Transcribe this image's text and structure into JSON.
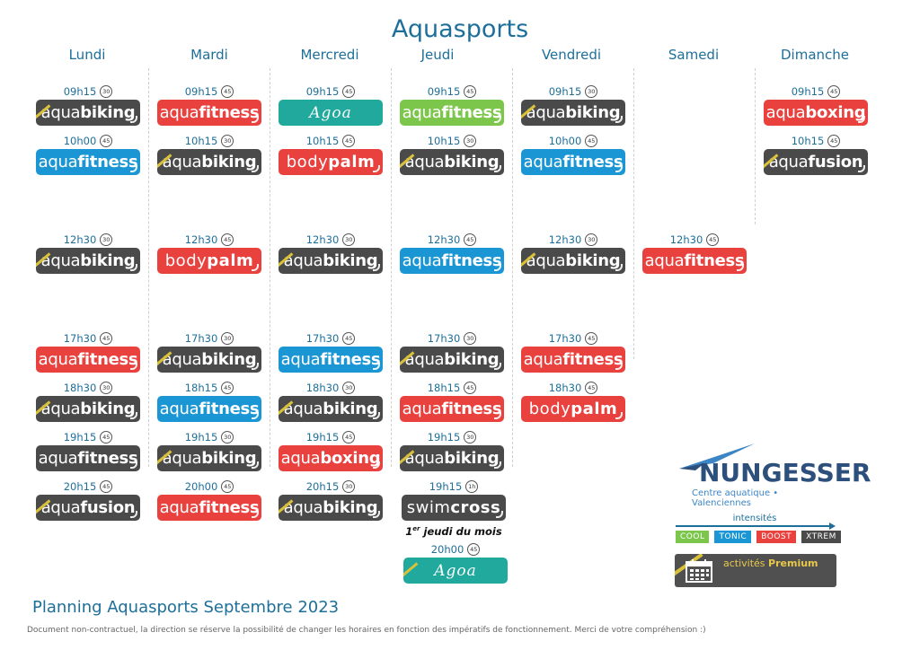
{
  "title": "Aquasports",
  "colors": {
    "dark": "#4a4a4a",
    "blue": "#1a96d4",
    "red": "#e8413e",
    "green": "#7cc64b",
    "teal": "#20a99c",
    "heading": "#1d6f9a",
    "premium_stripe": "#d9c23a"
  },
  "days": [
    {
      "name": "Lundi",
      "sessions": [
        {
          "time": "09h15",
          "dur": "30",
          "prefix": "aqua",
          "suffix": "biking",
          "color": "dark",
          "premium": true
        },
        {
          "time": "10h00",
          "dur": "45",
          "prefix": "aqua",
          "suffix": "fitness",
          "color": "blue",
          "premium": false
        },
        {
          "time": "12h30",
          "dur": "30",
          "prefix": "aqua",
          "suffix": "biking",
          "color": "dark",
          "premium": true
        },
        {
          "time": "17h30",
          "dur": "45",
          "prefix": "aqua",
          "suffix": "fitness",
          "color": "red",
          "premium": false
        },
        {
          "time": "18h30",
          "dur": "30",
          "prefix": "aqua",
          "suffix": "biking",
          "color": "dark",
          "premium": true
        },
        {
          "time": "19h15",
          "dur": "45",
          "prefix": "aqua",
          "suffix": "fitness",
          "color": "dark",
          "premium": false
        },
        {
          "time": "20h15",
          "dur": "45",
          "prefix": "aqua",
          "suffix": "fusion",
          "color": "dark",
          "premium": true
        }
      ]
    },
    {
      "name": "Mardi",
      "sessions": [
        {
          "time": "09h15",
          "dur": "45",
          "prefix": "aqua",
          "suffix": "fitness",
          "color": "red",
          "premium": false
        },
        {
          "time": "10h15",
          "dur": "30",
          "prefix": "aqua",
          "suffix": "biking",
          "color": "dark",
          "premium": true
        },
        {
          "time": "12h30",
          "dur": "45",
          "prefix": "body",
          "suffix": "palm",
          "color": "red",
          "premium": false
        },
        {
          "time": "17h30",
          "dur": "30",
          "prefix": "aqua",
          "suffix": "biking",
          "color": "dark",
          "premium": true
        },
        {
          "time": "18h15",
          "dur": "45",
          "prefix": "aqua",
          "suffix": "fitness",
          "color": "blue",
          "premium": false
        },
        {
          "time": "19h15",
          "dur": "30",
          "prefix": "aqua",
          "suffix": "biking",
          "color": "dark",
          "premium": true
        },
        {
          "time": "20h00",
          "dur": "45",
          "prefix": "aqua",
          "suffix": "fitness",
          "color": "red",
          "premium": false
        }
      ]
    },
    {
      "name": "Mercredi",
      "sessions": [
        {
          "time": "09h15",
          "dur": "45",
          "prefix": "Agoa",
          "suffix": "",
          "color": "teal",
          "premium": false,
          "agoa": true
        },
        {
          "time": "10h15",
          "dur": "45",
          "prefix": "body",
          "suffix": "palm",
          "color": "red",
          "premium": false
        },
        {
          "time": "12h30",
          "dur": "30",
          "prefix": "aqua",
          "suffix": "biking",
          "color": "dark",
          "premium": true
        },
        {
          "time": "17h30",
          "dur": "45",
          "prefix": "aqua",
          "suffix": "fitness",
          "color": "blue",
          "premium": false
        },
        {
          "time": "18h30",
          "dur": "30",
          "prefix": "aqua",
          "suffix": "biking",
          "color": "dark",
          "premium": true
        },
        {
          "time": "19h15",
          "dur": "45",
          "prefix": "aqua",
          "suffix": "boxing",
          "color": "red",
          "premium": false
        },
        {
          "time": "20h15",
          "dur": "30",
          "prefix": "aqua",
          "suffix": "biking",
          "color": "dark",
          "premium": true
        }
      ]
    },
    {
      "name": "Jeudi",
      "sessions": [
        {
          "time": "09h15",
          "dur": "45",
          "prefix": "aqua",
          "suffix": "fitness",
          "color": "green",
          "premium": false
        },
        {
          "time": "10h15",
          "dur": "30",
          "prefix": "aqua",
          "suffix": "biking",
          "color": "dark",
          "premium": true
        },
        {
          "time": "12h30",
          "dur": "45",
          "prefix": "aqua",
          "suffix": "fitness",
          "color": "blue",
          "premium": false
        },
        {
          "time": "17h30",
          "dur": "30",
          "prefix": "aqua",
          "suffix": "biking",
          "color": "dark",
          "premium": true
        },
        {
          "time": "18h15",
          "dur": "45",
          "prefix": "aqua",
          "suffix": "fitness",
          "color": "red",
          "premium": false
        },
        {
          "time": "19h15",
          "dur": "30",
          "prefix": "aqua",
          "suffix": "biking",
          "color": "dark",
          "premium": true
        },
        {
          "time": "19h15",
          "dur": "1h",
          "prefix": "swim",
          "suffix": "cross",
          "color": "dark",
          "premium": false
        },
        {
          "time": "20h00",
          "dur": "45",
          "prefix": "Agoa",
          "suffix": "",
          "color": "teal",
          "premium": true,
          "agoa": true
        }
      ]
    },
    {
      "name": "Vendredi",
      "sessions": [
        {
          "time": "09h15",
          "dur": "30",
          "prefix": "aqua",
          "suffix": "biking",
          "color": "dark",
          "premium": true
        },
        {
          "time": "10h00",
          "dur": "45",
          "prefix": "aqua",
          "suffix": "fitness",
          "color": "blue",
          "premium": false
        },
        {
          "time": "12h30",
          "dur": "30",
          "prefix": "aqua",
          "suffix": "biking",
          "color": "dark",
          "premium": true
        },
        {
          "time": "17h30",
          "dur": "45",
          "prefix": "aqua",
          "suffix": "fitness",
          "color": "red",
          "premium": false
        },
        {
          "time": "18h30",
          "dur": "45",
          "prefix": "body",
          "suffix": "palm",
          "color": "red",
          "premium": false
        }
      ]
    },
    {
      "name": "Samedi",
      "sessions": [
        {
          "time": "12h30",
          "dur": "45",
          "prefix": "aqua",
          "suffix": "fitness",
          "color": "red",
          "premium": false
        }
      ]
    },
    {
      "name": "Dimanche",
      "sessions": [
        {
          "time": "09h15",
          "dur": "45",
          "prefix": "aqua",
          "suffix": "boxing",
          "color": "red",
          "premium": false
        },
        {
          "time": "10h15",
          "dur": "45",
          "prefix": "aqua",
          "suffix": "fusion",
          "color": "dark",
          "premium": true
        }
      ]
    }
  ],
  "note": {
    "ordinal": "1",
    "sup": "er",
    "text": " jeudi du mois"
  },
  "logo": {
    "name": "NUNGESSER",
    "sub": "Centre aquatique • Valenciennes"
  },
  "intensities": {
    "title": "intensités",
    "levels": [
      {
        "label": "COOL",
        "color": "#7cc64b"
      },
      {
        "label": "TONIC",
        "color": "#1a96d4"
      },
      {
        "label": "BOOST",
        "color": "#e8413e"
      },
      {
        "label": "XTREM",
        "color": "#4a4a4a"
      }
    ]
  },
  "premium": {
    "prefix": "activités",
    "strong": "Premium"
  },
  "footer_title": "Planning Aquasports Septembre 2023",
  "disclaimer": "Document non-contractuel, la direction se réserve la possibilité de changer les horaires en fonction des impératifs de fonctionnement. Merci de votre compréhension :)"
}
